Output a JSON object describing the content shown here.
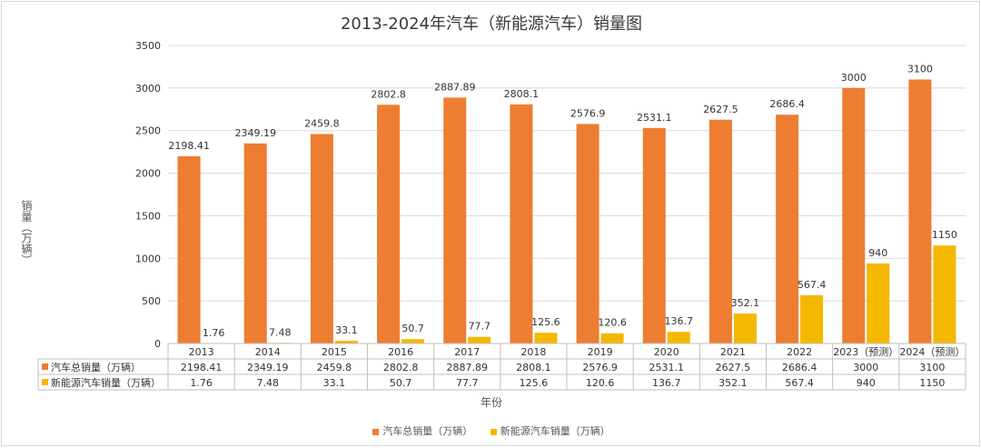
{
  "chart_data": {
    "type": "bar",
    "title": "2013-2024年汽车（新能源汽车）销量图",
    "xlabel": "年份",
    "ylabel": "销量（万辆）",
    "ylim": [
      0,
      3500
    ],
    "yticks": [
      0,
      500,
      1000,
      1500,
      2000,
      2500,
      3000,
      3500
    ],
    "grid": true,
    "legend_position": "bottom",
    "categories": [
      "2013",
      "2014",
      "2015",
      "2016",
      "2017",
      "2018",
      "2019",
      "2020",
      "2021",
      "2022",
      "2023（预测）",
      "2024（预测）"
    ],
    "series": [
      {
        "name": "汽车总销量（万辆）",
        "color": "#ED7D31",
        "values": [
          2198.41,
          2349.19,
          2459.8,
          2802.8,
          2887.89,
          2808.1,
          2576.9,
          2531.1,
          2627.5,
          2686.4,
          3000,
          3100
        ],
        "labels": [
          "2198.41",
          "2349.19",
          "2459.8",
          "2802.8",
          "2887.89",
          "2808.1",
          "2576.9",
          "2531.1",
          "2627.5",
          "2686.4",
          "3000",
          "3100"
        ]
      },
      {
        "name": "新能源汽车销量（万辆）",
        "color": "#F4B800",
        "values": [
          1.76,
          7.48,
          33.1,
          50.7,
          77.7,
          125.6,
          120.6,
          136.7,
          352.1,
          567.4,
          940,
          1150
        ],
        "labels": [
          "1.76",
          "7.48",
          "33.1",
          "50.7",
          "77.7",
          "125.6",
          "120.6",
          "136.7",
          "352.1",
          "567.4",
          "940",
          "1150"
        ]
      }
    ],
    "data_table": true
  }
}
